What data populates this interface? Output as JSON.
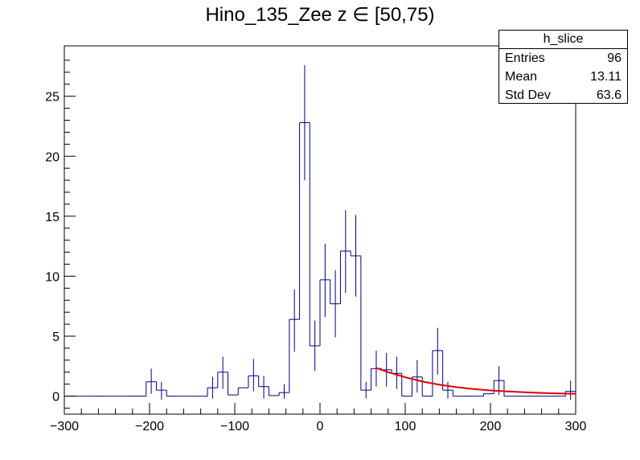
{
  "chart_data": {
    "type": "histogram",
    "title": "Hino_135_Zee z  ∈ [50,75)",
    "xlim": [
      -300,
      300
    ],
    "ylim": [
      -1.5,
      29.2
    ],
    "x_ticks": [
      -300,
      -200,
      -100,
      0,
      100,
      200,
      300
    ],
    "y_ticks": [
      0,
      5,
      10,
      15,
      20,
      25
    ],
    "x_tick_labels": [
      "−300",
      "−200",
      "−100",
      "0",
      "100",
      "200",
      "300"
    ],
    "y_tick_labels": [
      "0",
      "5",
      "10",
      "15",
      "20",
      "25"
    ],
    "grid": false,
    "bin_width": 12,
    "bin_low_edges": [
      -300,
      -288,
      -276,
      -264,
      -252,
      -240,
      -228,
      -216,
      -204,
      -192,
      -180,
      -168,
      -156,
      -144,
      -132,
      -120,
      -108,
      -96,
      -84,
      -72,
      -60,
      -48,
      -36,
      -24,
      -12,
      0,
      12,
      24,
      36,
      48,
      60,
      72,
      84,
      96,
      108,
      120,
      132,
      144,
      156,
      168,
      180,
      192,
      204,
      216,
      228,
      240,
      252,
      264,
      276,
      288
    ],
    "bin_values": [
      0,
      0,
      0,
      0,
      0,
      0,
      0,
      0,
      1.2,
      0.5,
      0,
      0,
      0,
      0,
      0.7,
      2.0,
      0.1,
      0.7,
      1.7,
      0.8,
      0.05,
      0.3,
      6.4,
      22.8,
      4.2,
      9.7,
      7.7,
      12.1,
      11.7,
      0.5,
      2.3,
      2.2,
      1.9,
      0,
      1.6,
      0,
      3.8,
      0.5,
      0,
      0,
      0,
      0.2,
      1.3,
      0,
      0,
      0,
      0,
      0,
      0,
      0.4
    ],
    "error_bars": [
      {
        "x": -198,
        "y": 1.2,
        "lo": 0.2,
        "hi": 2.3
      },
      {
        "x": -186,
        "y": 0.5,
        "lo": -0.3,
        "hi": 1.2
      },
      {
        "x": -126,
        "y": 0.7,
        "lo": -0.2,
        "hi": 1.6
      },
      {
        "x": -114,
        "y": 2.0,
        "lo": 0.6,
        "hi": 3.3
      },
      {
        "x": -78,
        "y": 1.7,
        "lo": 0.4,
        "hi": 3.1
      },
      {
        "x": -66,
        "y": 0.8,
        "lo": -0.2,
        "hi": 1.7
      },
      {
        "x": -42,
        "y": 0.3,
        "lo": -0.2,
        "hi": 1.0
      },
      {
        "x": -30,
        "y": 6.4,
        "lo": 3.7,
        "hi": 8.9
      },
      {
        "x": -18,
        "y": 22.8,
        "lo": 18.0,
        "hi": 27.6
      },
      {
        "x": -6,
        "y": 4.2,
        "lo": 2.1,
        "hi": 6.3
      },
      {
        "x": 6,
        "y": 9.7,
        "lo": 6.6,
        "hi": 12.7
      },
      {
        "x": 18,
        "y": 7.7,
        "lo": 4.9,
        "hi": 10.5
      },
      {
        "x": 30,
        "y": 12.1,
        "lo": 8.6,
        "hi": 15.5
      },
      {
        "x": 42,
        "y": 11.7,
        "lo": 8.3,
        "hi": 15.1
      },
      {
        "x": 54,
        "y": 0.5,
        "lo": -0.2,
        "hi": 1.2
      },
      {
        "x": 66,
        "y": 2.3,
        "lo": 0.8,
        "hi": 3.8
      },
      {
        "x": 78,
        "y": 2.2,
        "lo": 0.8,
        "hi": 3.6
      },
      {
        "x": 90,
        "y": 1.9,
        "lo": 0.6,
        "hi": 3.3
      },
      {
        "x": 114,
        "y": 1.6,
        "lo": 0.3,
        "hi": 3.0
      },
      {
        "x": 138,
        "y": 3.8,
        "lo": 1.8,
        "hi": 5.7
      },
      {
        "x": 150,
        "y": 0.5,
        "lo": -0.2,
        "hi": 1.2
      },
      {
        "x": 210,
        "y": 1.3,
        "lo": 0.1,
        "hi": 2.5
      },
      {
        "x": 294,
        "y": 0.4,
        "lo": -0.3,
        "hi": 1.3
      }
    ],
    "fit": {
      "x_range": [
        66,
        300
      ],
      "points": [
        [
          66,
          2.35
        ],
        [
          80,
          2.0
        ],
        [
          100,
          1.58
        ],
        [
          120,
          1.22
        ],
        [
          140,
          0.95
        ],
        [
          160,
          0.75
        ],
        [
          180,
          0.6
        ],
        [
          200,
          0.48
        ],
        [
          220,
          0.4
        ],
        [
          240,
          0.33
        ],
        [
          260,
          0.27
        ],
        [
          280,
          0.23
        ],
        [
          300,
          0.2
        ]
      ]
    },
    "colors": {
      "histogram": "#000080",
      "fit": "#e00000",
      "axis": "#000000"
    },
    "legend_placement": "top-right"
  },
  "stats": {
    "name": "h_slice",
    "rows": [
      {
        "label": "Entries",
        "value": "96"
      },
      {
        "label": "Mean",
        "value": "13.11"
      },
      {
        "label": "Std Dev",
        "value": "63.6"
      }
    ]
  }
}
